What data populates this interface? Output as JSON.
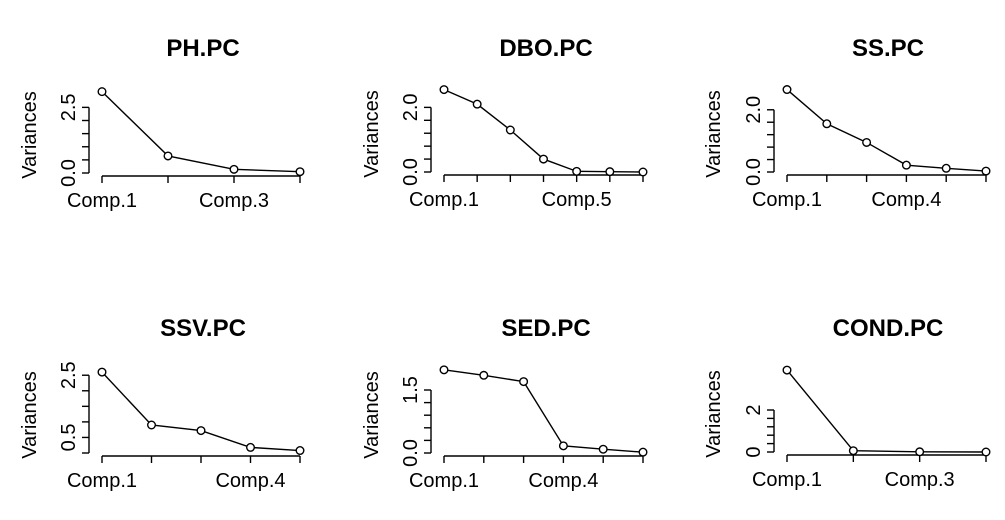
{
  "chart_data": [
    {
      "type": "line",
      "title": "PH.PC",
      "ylabel": "Variances",
      "x": [
        "Comp.1",
        "Comp.2",
        "Comp.3",
        "Comp.4"
      ],
      "x_tick_labels": [
        "Comp.1",
        "Comp.3"
      ],
      "values": [
        3.1,
        0.65,
        0.14,
        0.05
      ],
      "y_ticks": [
        0,
        2.5
      ],
      "y_tick_labels": [
        "0.0",
        "2.5"
      ],
      "ylim": [
        0,
        3.2
      ]
    },
    {
      "type": "line",
      "title": "DBO.PC",
      "ylabel": "Variances",
      "x": [
        "Comp.1",
        "Comp.2",
        "Comp.3",
        "Comp.4",
        "Comp.5",
        "Comp.6",
        "Comp.7"
      ],
      "x_tick_labels": [
        "Comp.1",
        "Comp.5"
      ],
      "values": [
        2.55,
        2.1,
        1.3,
        0.4,
        0.02,
        0.01,
        0.0
      ],
      "y_ticks": [
        0,
        2.0
      ],
      "y_tick_labels": [
        "0.0",
        "2.0"
      ],
      "ylim": [
        0,
        2.6
      ]
    },
    {
      "type": "line",
      "title": "SS.PC",
      "ylabel": "Variances",
      "x": [
        "Comp.1",
        "Comp.2",
        "Comp.3",
        "Comp.4",
        "Comp.5",
        "Comp.6"
      ],
      "x_tick_labels": [
        "Comp.1",
        "Comp.4"
      ],
      "values": [
        2.65,
        1.55,
        0.95,
        0.22,
        0.12,
        0.03
      ],
      "y_ticks": [
        0,
        2.0
      ],
      "y_tick_labels": [
        "0.0",
        "2.0"
      ],
      "ylim": [
        0,
        2.7
      ]
    },
    {
      "type": "line",
      "title": "SSV.PC",
      "ylabel": "Variances",
      "x": [
        "Comp.1",
        "Comp.2",
        "Comp.3",
        "Comp.4",
        "Comp.5"
      ],
      "x_tick_labels": [
        "Comp.1",
        "Comp.4"
      ],
      "values": [
        2.6,
        0.9,
        0.72,
        0.18,
        0.08
      ],
      "y_ticks": [
        0.5,
        2.5
      ],
      "y_tick_labels": [
        "0.5",
        "2.5"
      ],
      "ylim": [
        0,
        2.7
      ]
    },
    {
      "type": "line",
      "title": "SED.PC",
      "ylabel": "Variances",
      "x": [
        "Comp.1",
        "Comp.2",
        "Comp.3",
        "Comp.4",
        "Comp.5",
        "Comp.6"
      ],
      "x_tick_labels": [
        "Comp.1",
        "Comp.4"
      ],
      "values": [
        1.98,
        1.85,
        1.7,
        0.17,
        0.09,
        0.02
      ],
      "y_ticks": [
        0,
        1.5
      ],
      "y_tick_labels": [
        "0.0",
        "1.5"
      ],
      "ylim": [
        0,
        2.0
      ]
    },
    {
      "type": "line",
      "title": "COND.PC",
      "ylabel": "Variances",
      "x": [
        "Comp.1",
        "Comp.2",
        "Comp.3",
        "Comp.4"
      ],
      "x_tick_labels": [
        "Comp.1",
        "Comp.3"
      ],
      "values": [
        3.9,
        0.06,
        0.01,
        0.0
      ],
      "y_ticks": [
        0,
        2
      ],
      "y_tick_labels": [
        "0",
        "2"
      ],
      "ylim": [
        0,
        4.0
      ]
    }
  ]
}
